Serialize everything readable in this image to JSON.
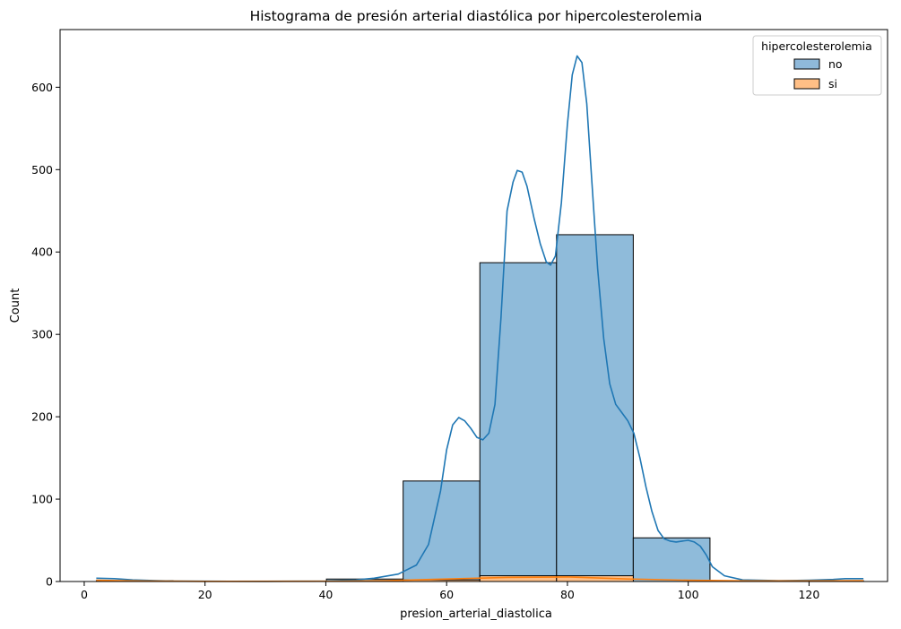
{
  "chart_data": {
    "type": "bar",
    "title": "Histograma de presión arterial diastólica por hipercolesterolemia",
    "xlabel": "presion_arterial_diastolica",
    "ylabel": "Count",
    "xlim": [
      -4,
      133
    ],
    "ylim": [
      0,
      670
    ],
    "xticks": [
      0,
      20,
      40,
      60,
      80,
      100,
      120
    ],
    "yticks": [
      0,
      100,
      200,
      300,
      400,
      500,
      600
    ],
    "legend": {
      "title": "hipercolesterolemia",
      "placement": "top-right",
      "entries": [
        "no",
        "si"
      ]
    },
    "bin_edges": [
      2,
      14.7,
      27.4,
      40.1,
      52.8,
      65.5,
      78.2,
      90.9,
      103.6,
      116.3,
      129
    ],
    "series": [
      {
        "name": "no",
        "color": "#1f77b4",
        "counts": [
          1,
          0,
          0,
          3,
          122,
          387,
          421,
          53,
          0,
          1
        ],
        "kde": [
          [
            2,
            4
          ],
          [
            5,
            3.5
          ],
          [
            8,
            2
          ],
          [
            12,
            1
          ],
          [
            15,
            0.5
          ],
          [
            20,
            0.3
          ],
          [
            30,
            0.2
          ],
          [
            40,
            0.5
          ],
          [
            45,
            2
          ],
          [
            48,
            4
          ],
          [
            52,
            9
          ],
          [
            55,
            20
          ],
          [
            57,
            45
          ],
          [
            59,
            110
          ],
          [
            60,
            160
          ],
          [
            61,
            190
          ],
          [
            62,
            199
          ],
          [
            63,
            195
          ],
          [
            64,
            186
          ],
          [
            65,
            175
          ],
          [
            66,
            172
          ],
          [
            67,
            180
          ],
          [
            68,
            215
          ],
          [
            69,
            320
          ],
          [
            70,
            450
          ],
          [
            71,
            485
          ],
          [
            71.7,
            499
          ],
          [
            72.5,
            497
          ],
          [
            73.3,
            480
          ],
          [
            74.5,
            440
          ],
          [
            75.5,
            410
          ],
          [
            76.5,
            388
          ],
          [
            77.2,
            384
          ],
          [
            78,
            395
          ],
          [
            79,
            460
          ],
          [
            80,
            555
          ],
          [
            80.8,
            615
          ],
          [
            81.6,
            638
          ],
          [
            82.4,
            630
          ],
          [
            83.2,
            580
          ],
          [
            84,
            490
          ],
          [
            85,
            380
          ],
          [
            86,
            295
          ],
          [
            87,
            240
          ],
          [
            88,
            215
          ],
          [
            89,
            205
          ],
          [
            90,
            195
          ],
          [
            91,
            180
          ],
          [
            92,
            150
          ],
          [
            93,
            115
          ],
          [
            94,
            85
          ],
          [
            95,
            62
          ],
          [
            96,
            52
          ],
          [
            97,
            49
          ],
          [
            98,
            48
          ],
          [
            99,
            49
          ],
          [
            100,
            50
          ],
          [
            101,
            48
          ],
          [
            102,
            43
          ],
          [
            103,
            32
          ],
          [
            104,
            18
          ],
          [
            106,
            7
          ],
          [
            109,
            2
          ],
          [
            115,
            1
          ],
          [
            120,
            1.5
          ],
          [
            124,
            2.5
          ],
          [
            126,
            3.5
          ],
          [
            129,
            3.5
          ]
        ]
      },
      {
        "name": "si",
        "color": "#ff7f0e",
        "counts": [
          0,
          0,
          0,
          0,
          2,
          7,
          7,
          0,
          0,
          0
        ],
        "kde": [
          [
            2,
            1.5
          ],
          [
            10,
            0.6
          ],
          [
            20,
            0.2
          ],
          [
            40,
            0.3
          ],
          [
            50,
            1
          ],
          [
            60,
            3
          ],
          [
            70,
            5
          ],
          [
            80,
            5.5
          ],
          [
            90,
            3
          ],
          [
            100,
            1.5
          ],
          [
            110,
            0.8
          ],
          [
            120,
            0.8
          ],
          [
            129,
            1
          ]
        ]
      }
    ]
  }
}
